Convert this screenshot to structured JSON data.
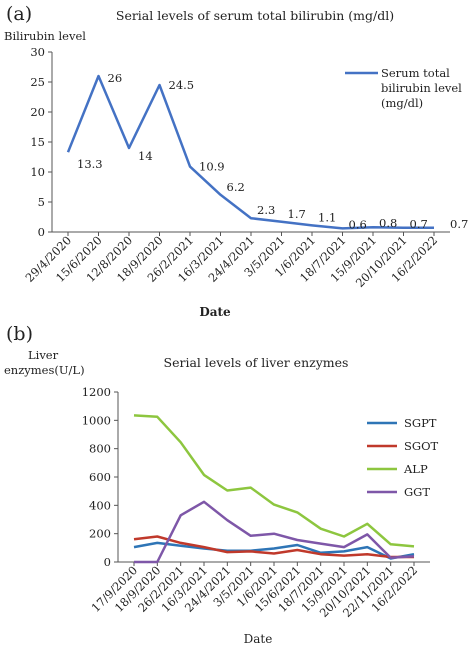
{
  "chart_data": [
    {
      "panel_label": "(a)",
      "type": "line",
      "title": "Serial levels of serum total bilirubin (mg/dl)",
      "ylabel": "Bilirubin level",
      "xlabel": "Date",
      "ylim": [
        0,
        30
      ],
      "yticks": [
        0,
        5,
        10,
        15,
        20,
        25,
        30
      ],
      "categories": [
        "29/4/2020",
        "15/6/2020",
        "12/8/2020",
        "18/9/2020",
        "26/2/2021",
        "16/3/2021",
        "24/4/2021",
        "3/5/2021",
        "1/6/2021",
        "18/7/2021",
        "15/9/2021",
        "20/10/2021",
        "16/2/2022"
      ],
      "series": [
        {
          "name": "Serum total bilirubin level (mg/dl)",
          "legend_lines": [
            "Serum total",
            "bilirubin level",
            "(mg/dl)"
          ],
          "color": "#4472c4",
          "values": [
            13.3,
            26,
            14,
            24.5,
            10.9,
            6.2,
            2.3,
            1.7,
            1.1,
            0.6,
            0.8,
            0.7,
            0.7
          ],
          "data_labels": [
            "13.3",
            "26",
            "14",
            "24.5",
            "10.9",
            "6.2",
            "2.3",
            "1.7",
            "1.1",
            "0.6",
            "0.8",
            "0.7",
            "0.7"
          ]
        }
      ],
      "legend": "top-right",
      "grid": false
    },
    {
      "panel_label": "(b)",
      "type": "line",
      "title": "Serial levels of liver enzymes",
      "ylabel_lines": [
        "Liver",
        "enzymes(U/L)"
      ],
      "xlabel": "Date",
      "ylim": [
        0,
        1200
      ],
      "yticks": [
        0,
        200,
        400,
        600,
        800,
        1000,
        1200
      ],
      "categories": [
        "17/9/2020",
        "18/9/2020",
        "26/2/2021",
        "16/3/2021",
        "24/4/2021",
        "3/5/2021",
        "1/6/2021",
        "15/6/2021",
        "18/7/2021",
        "15/9/2021",
        "20/10/2021",
        "22/11/2021",
        "16/2/2022"
      ],
      "series": [
        {
          "name": "SGPT",
          "color": "#2e75b6",
          "values": [
            105,
            135,
            115,
            95,
            80,
            80,
            95,
            120,
            65,
            75,
            105,
            25,
            55
          ]
        },
        {
          "name": "SGOT",
          "color": "#c0392b",
          "values": [
            160,
            180,
            135,
            105,
            70,
            75,
            60,
            85,
            55,
            45,
            55,
            35,
            35
          ]
        },
        {
          "name": "ALP",
          "color": "#8dc63f",
          "values": [
            1035,
            1025,
            845,
            615,
            505,
            525,
            405,
            350,
            235,
            180,
            270,
            125,
            110
          ]
        },
        {
          "name": "GGT",
          "color": "#7e57a8",
          "values": [
            0,
            0,
            330,
            425,
            295,
            185,
            200,
            155,
            130,
            105,
            195,
            30,
            40
          ]
        }
      ],
      "legend": "right",
      "grid": false
    }
  ]
}
